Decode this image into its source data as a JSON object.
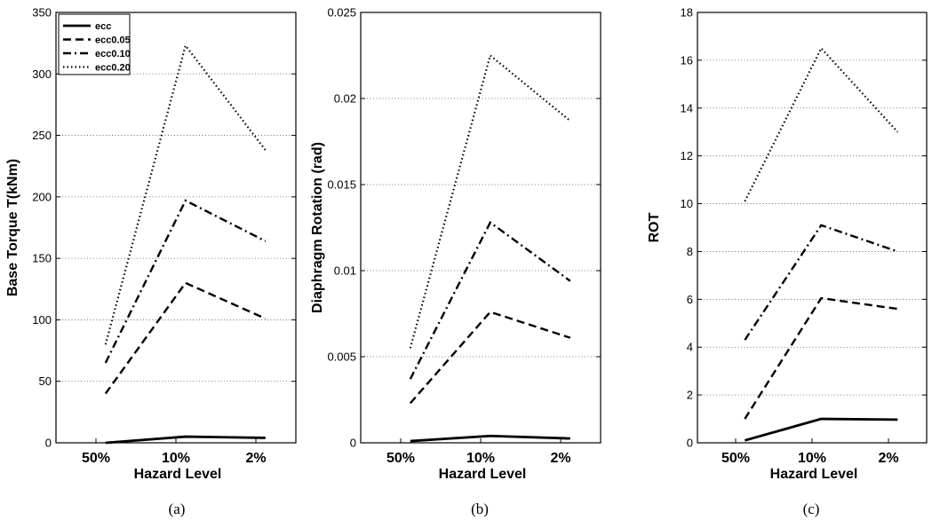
{
  "chart_data": [
    {
      "type": "line",
      "caption": "(a)",
      "title": "",
      "xlabel": "Hazard Level",
      "ylabel": "Base Torque T(kNm)",
      "categories": [
        "50%",
        "10%",
        "2%"
      ],
      "x_positions": [
        0.62,
        1.62,
        2.62
      ],
      "ylim": [
        0,
        350
      ],
      "yticks": [
        0,
        50,
        100,
        150,
        200,
        250,
        300,
        350
      ],
      "ytick_labels": [
        "0",
        "50",
        "100",
        "150",
        "200",
        "250",
        "300",
        "350"
      ],
      "grid": "y",
      "legend": "top-left",
      "series": [
        {
          "name": "ecc",
          "style": "solid",
          "values": [
            0,
            5,
            4
          ]
        },
        {
          "name": "ecc0.05",
          "style": "dashed",
          "values": [
            40,
            130,
            101
          ]
        },
        {
          "name": "ecc0.10",
          "style": "dashdot",
          "values": [
            65,
            197,
            164
          ]
        },
        {
          "name": "ecc0.20",
          "style": "dotted",
          "values": [
            80,
            323,
            238
          ]
        }
      ]
    },
    {
      "type": "line",
      "caption": "(b)",
      "title": "",
      "xlabel": "Hazard Level",
      "ylabel": "Diaphragm Rotation (rad)",
      "categories": [
        "50%",
        "10%",
        "2%"
      ],
      "x_positions": [
        0.62,
        1.62,
        2.62
      ],
      "ylim": [
        0,
        0.025
      ],
      "yticks": [
        0,
        0.005,
        0.01,
        0.015,
        0.02,
        0.025
      ],
      "ytick_labels": [
        "0",
        "0.005",
        "0.01",
        "0.015",
        "0.02",
        "0.025"
      ],
      "grid": "y",
      "legend": "none",
      "series": [
        {
          "style": "solid",
          "values": [
            0.0001,
            0.0004,
            0.00025
          ]
        },
        {
          "style": "dashed",
          "values": [
            0.0023,
            0.0076,
            0.0061
          ]
        },
        {
          "style": "dashdot",
          "values": [
            0.0037,
            0.0128,
            0.0094
          ]
        },
        {
          "style": "dotted",
          "values": [
            0.0055,
            0.0225,
            0.0187
          ]
        }
      ]
    },
    {
      "type": "line",
      "caption": "(c)",
      "title": "",
      "xlabel": "Hazard Level",
      "ylabel": "ROT",
      "categories": [
        "50%",
        "10%",
        "2%"
      ],
      "x_positions": [
        0.62,
        1.62,
        2.62
      ],
      "ylim": [
        0,
        18
      ],
      "yticks": [
        0,
        2,
        4,
        6,
        8,
        10,
        12,
        14,
        16,
        18
      ],
      "ytick_labels": [
        "0",
        "2",
        "4",
        "6",
        "8",
        "10",
        "12",
        "14",
        "16",
        "18"
      ],
      "grid": "y",
      "legend": "none",
      "series": [
        {
          "style": "solid",
          "values": [
            0.1,
            1.0,
            0.97
          ]
        },
        {
          "style": "dashed",
          "values": [
            1.0,
            6.05,
            5.6
          ]
        },
        {
          "style": "dashdot",
          "values": [
            4.3,
            9.1,
            8.0
          ]
        },
        {
          "style": "dotted",
          "values": [
            10.1,
            16.5,
            13.0
          ]
        }
      ]
    }
  ]
}
